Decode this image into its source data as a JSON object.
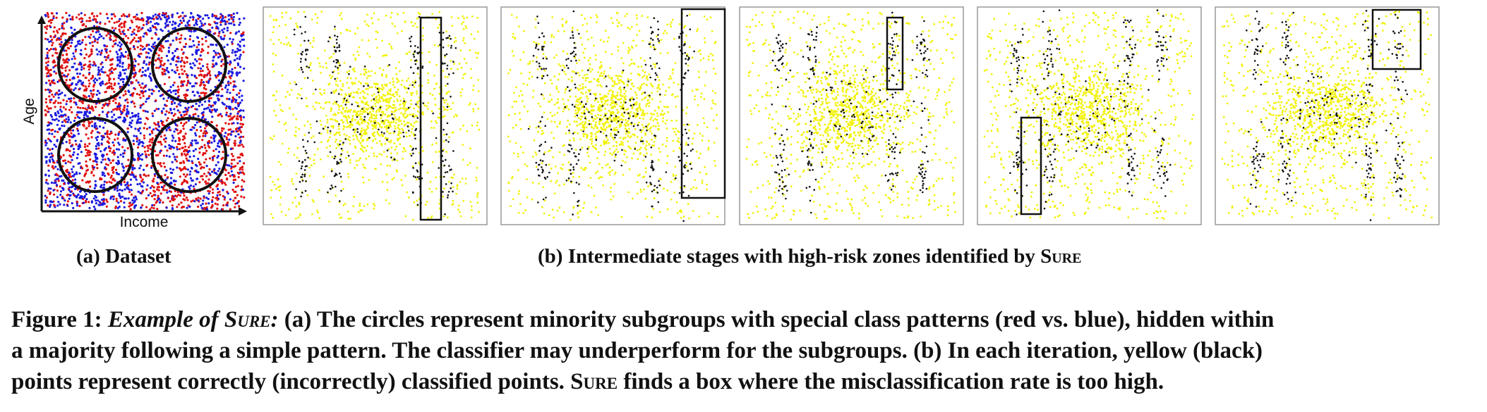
{
  "figure": {
    "dataset_panel": {
      "xlabel": "Income",
      "ylabel": "Age",
      "colors": {
        "class_a": "#e01010",
        "class_b": "#1a1ae0"
      }
    },
    "stage_panels": {
      "count": 5,
      "colors": {
        "correct": "#f2f20a",
        "incorrect": "#111111",
        "box": "#000000"
      }
    },
    "subcaption_a": "(a) Dataset",
    "subcaption_b": {
      "text": "(b) Intermediate stages with high-risk zones identified by ",
      "name": "Sure"
    },
    "caption": {
      "label": "Figure 1: ",
      "title_prefix": "Example of ",
      "title_name": "Sure",
      "title_suffix": ":",
      "line1_rest": " (a) The circles represent minority subgroups with special class patterns (red vs. blue), hidden within",
      "line2": "a majority following a simple pattern. The classifier may underperform for the subgroups. (b) In each iteration, yellow (black)",
      "line3_pre": "points represent correctly (incorrectly) classified points. ",
      "line3_name": "Sure",
      "line3_rest": " finds a box where the misclassification rate is too high."
    }
  }
}
